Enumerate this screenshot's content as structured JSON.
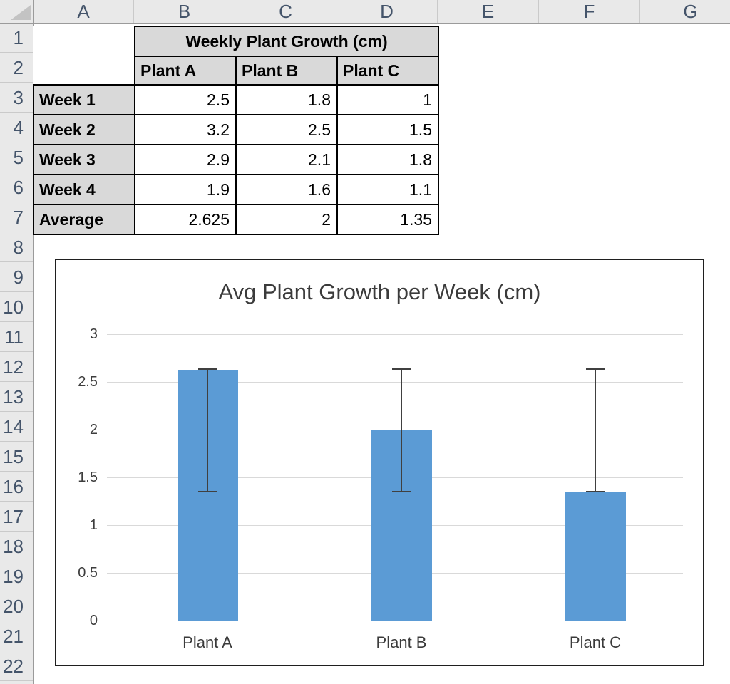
{
  "spreadsheet": {
    "column_letters": [
      "A",
      "B",
      "C",
      "D",
      "E",
      "F",
      "G"
    ],
    "row_numbers": [
      "1",
      "2",
      "3",
      "4",
      "5",
      "6",
      "7",
      "8",
      "9",
      "10",
      "11",
      "12",
      "13",
      "14",
      "15",
      "16",
      "17",
      "18",
      "19",
      "20",
      "21",
      "22"
    ]
  },
  "table": {
    "title": "Weekly Plant Growth (cm)",
    "plant_headers": [
      "Plant A",
      "Plant B",
      "Plant C"
    ],
    "rows": [
      {
        "label": "Week 1",
        "values": [
          "2.5",
          "1.8",
          "1"
        ]
      },
      {
        "label": "Week 2",
        "values": [
          "3.2",
          "2.5",
          "1.5"
        ]
      },
      {
        "label": "Week 3",
        "values": [
          "2.9",
          "2.1",
          "1.8"
        ]
      },
      {
        "label": "Week 4",
        "values": [
          "1.9",
          "1.6",
          "1.1"
        ]
      },
      {
        "label": "Average",
        "values": [
          "2.625",
          "2",
          "1.35"
        ]
      }
    ]
  },
  "chart_data": {
    "type": "bar",
    "title": "Avg Plant Growth per Week (cm)",
    "categories": [
      "Plant A",
      "Plant B",
      "Plant C"
    ],
    "values": [
      2.625,
      2,
      1.35
    ],
    "error_bars": {
      "min": 1.35,
      "max": 2.63
    },
    "ylim": [
      0,
      3
    ],
    "ytick_step": 0.5,
    "ytick_labels": [
      "0",
      "0.5",
      "1",
      "1.5",
      "2",
      "2.5",
      "3"
    ],
    "grid": true,
    "legend": "none",
    "bar_color": "#5B9BD5",
    "error_bar_color": "#404040"
  }
}
